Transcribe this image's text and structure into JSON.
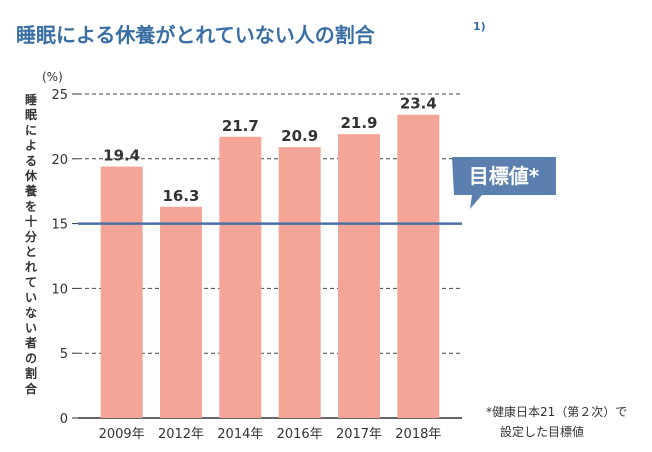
{
  "title": "睡眠による休養がとれていない人の割合",
  "title_sup": "1)",
  "colors": {
    "title": "#3a6fa5",
    "bar": "#f5a597",
    "target_line": "#4a6fa5",
    "target_badge": "#5b7fae",
    "axis": "#333333",
    "grid": "#444444"
  },
  "chart_data": {
    "type": "bar",
    "categories": [
      "2009年",
      "2012年",
      "2014年",
      "2016年",
      "2017年",
      "2018年"
    ],
    "values": [
      19.4,
      16.3,
      21.7,
      20.9,
      21.9,
      23.4
    ],
    "value_labels": [
      "19.4",
      "16.3",
      "21.7",
      "20.9",
      "21.9",
      "23.4"
    ],
    "ylabel": "睡眠による休養を十分とれていない者の割合",
    "yunit": "(%)",
    "ylim": [
      0,
      25
    ],
    "yticks": [
      0,
      5,
      10,
      15,
      20,
      25
    ],
    "grid": "dashed horizontal",
    "target_value": 15,
    "target_label": "目標値*"
  },
  "footnote": {
    "line1": "*健康日本21（第２次）で",
    "line2": "設定した目標値"
  }
}
